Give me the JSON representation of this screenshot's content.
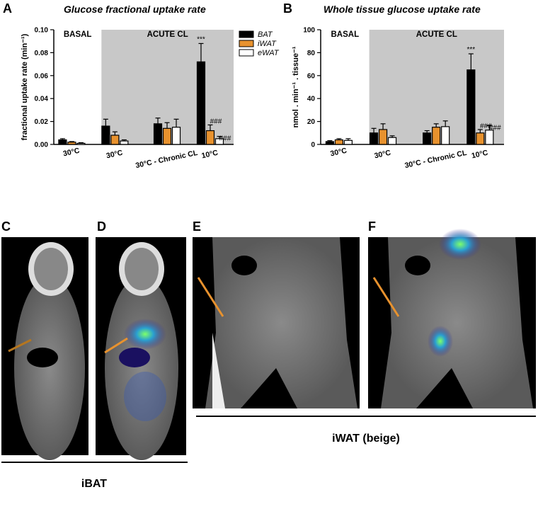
{
  "chart_data": [
    {
      "type": "bar",
      "panel": "A",
      "title": "Glucose fractional uptake rate",
      "y_label": "fractional uptake rate (min⁻¹)",
      "categories": [
        "30°C",
        "30°C",
        "30°C - Chronic CL",
        "10°C"
      ],
      "regions": [
        {
          "label": "BASAL",
          "shaded": false
        },
        {
          "label": "ACUTE CL",
          "shaded": true
        }
      ],
      "series": [
        {
          "name": "BAT",
          "color": "#000000",
          "values": [
            0.004,
            0.016,
            0.018,
            0.072
          ],
          "errors": [
            0.001,
            0.006,
            0.005,
            0.016
          ],
          "significance": [
            null,
            null,
            null,
            "***"
          ]
        },
        {
          "name": "iWAT",
          "color": "#e8922e",
          "values": [
            0.002,
            0.008,
            0.014,
            0.012
          ],
          "errors": [
            0.0005,
            0.003,
            0.005,
            0.005
          ],
          "significance": [
            null,
            null,
            null,
            "###"
          ]
        },
        {
          "name": "eWAT",
          "color": "#ffffff",
          "values": [
            0.001,
            0.003,
            0.015,
            0.005
          ],
          "errors": [
            0.0005,
            0.001,
            0.007,
            0.002
          ],
          "significance": [
            null,
            null,
            null,
            "###"
          ]
        }
      ],
      "ylim": [
        0,
        0.1
      ],
      "yticks": [
        {
          "value": 0,
          "label": "0.00"
        },
        {
          "value": 0.02,
          "label": "0.02"
        },
        {
          "value": 0.04,
          "label": "0.04"
        },
        {
          "value": 0.06,
          "label": "0.06"
        },
        {
          "value": 0.08,
          "label": "0.08"
        },
        {
          "value": 0.1,
          "label": "0.10"
        }
      ],
      "legend": "right"
    },
    {
      "type": "bar",
      "panel": "B",
      "title": "Whole tissue glucose uptake rate",
      "y_label": "nmol . min⁻¹ . tissue⁻¹",
      "categories": [
        "30°C",
        "30°C",
        "30°C - Chronic CL",
        "10°C"
      ],
      "regions": [
        {
          "label": "BASAL",
          "shaded": false
        },
        {
          "label": "ACUTE CL",
          "shaded": true
        }
      ],
      "series": [
        {
          "name": "BAT",
          "color": "#000000",
          "values": [
            2.5,
            10,
            10,
            65
          ],
          "errors": [
            0.8,
            4,
            2,
            14
          ],
          "significance": [
            null,
            null,
            null,
            "***"
          ]
        },
        {
          "name": "iWAT",
          "color": "#e8922e",
          "values": [
            4,
            13,
            15,
            10
          ],
          "errors": [
            1,
            5,
            3,
            3
          ],
          "significance": [
            null,
            null,
            null,
            "###"
          ]
        },
        {
          "name": "eWAT",
          "color": "#ffffff",
          "values": [
            3.5,
            6,
            15.5,
            12.5
          ],
          "errors": [
            1.5,
            1.5,
            5,
            4
          ],
          "significance": [
            null,
            null,
            null,
            "###"
          ]
        }
      ],
      "ylim": [
        0,
        100
      ],
      "yticks": [
        0,
        20,
        40,
        60,
        80,
        100
      ]
    }
  ],
  "panels": [
    "C",
    "D",
    "E",
    "F"
  ],
  "group_labels": [
    "iBAT",
    "iWAT (beige)"
  ]
}
